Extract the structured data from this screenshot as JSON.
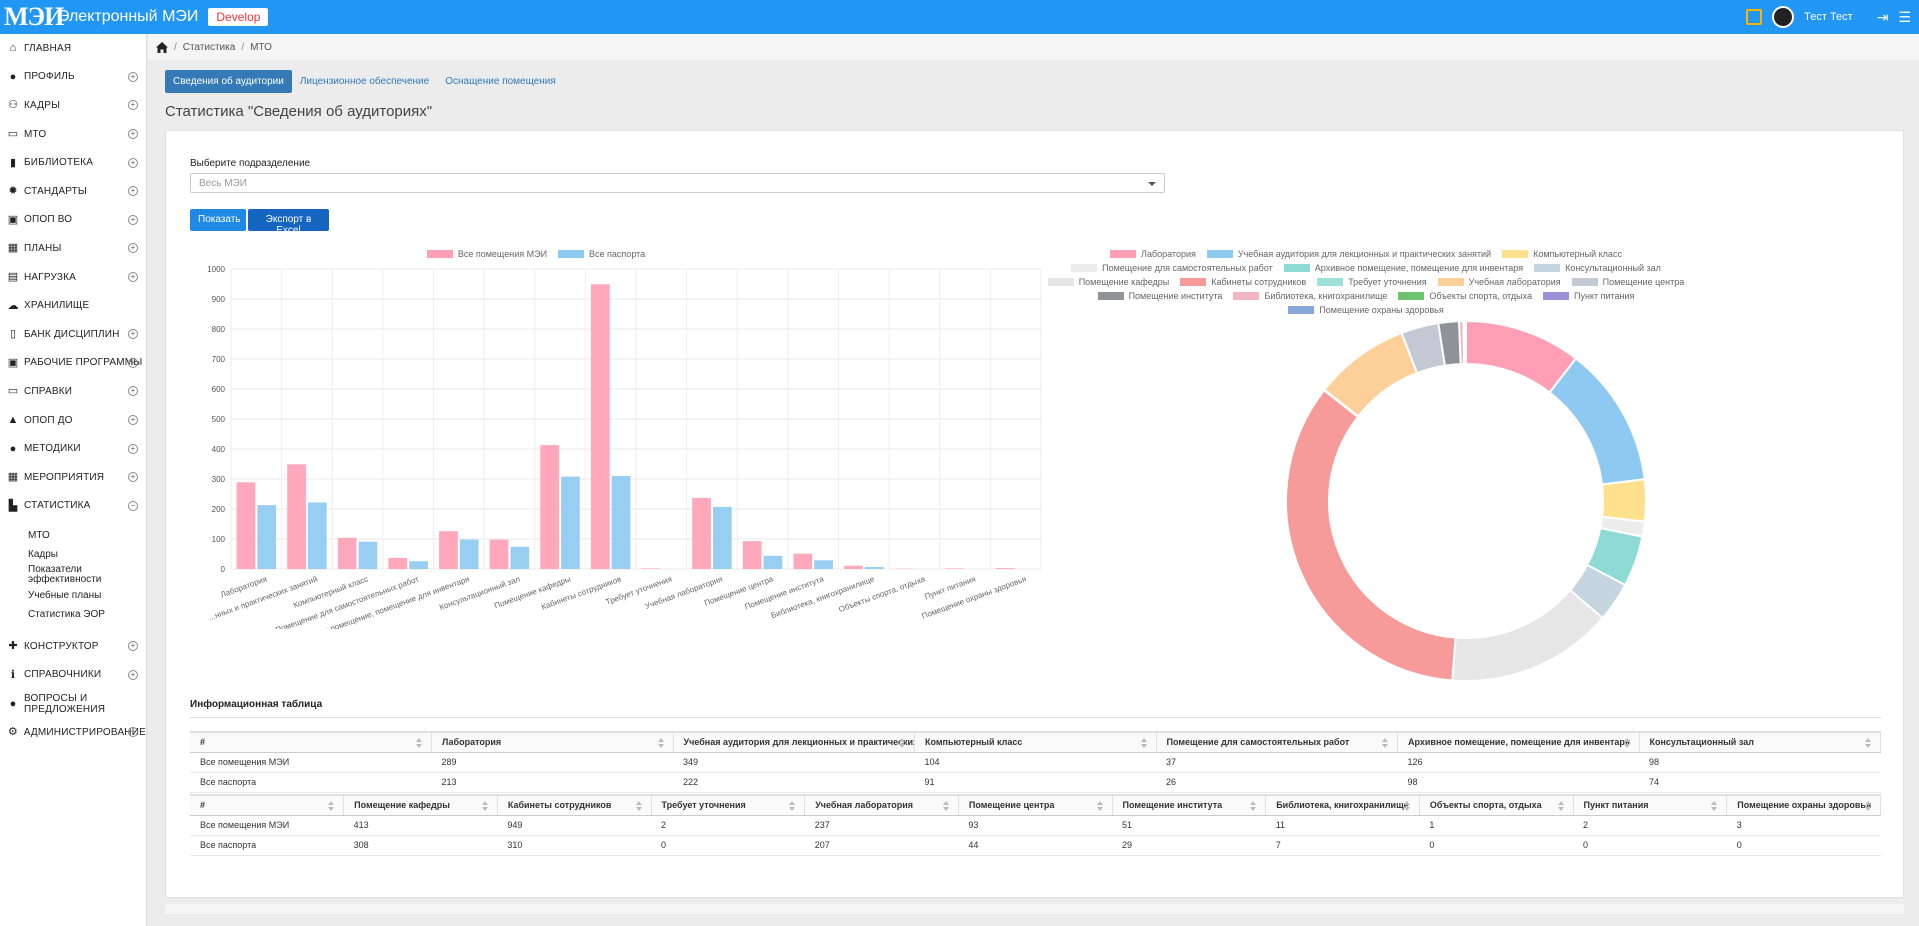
{
  "header": {
    "logo": "МЭИ",
    "app_name": "Электронный МЭИ",
    "env_badge": "Develop",
    "user_name": "Тест Тест"
  },
  "sidebar": {
    "items": [
      {
        "label": "Главная",
        "icon": "home-icon",
        "expandable": false
      },
      {
        "label": "Профиль",
        "icon": "user-icon",
        "expandable": true
      },
      {
        "label": "Кадры",
        "icon": "users-icon",
        "expandable": true
      },
      {
        "label": "МТО",
        "icon": "archive-icon",
        "expandable": true
      },
      {
        "label": "Библиотека",
        "icon": "book-icon",
        "expandable": true
      },
      {
        "label": "Стандарты",
        "icon": "certificate-icon",
        "expandable": true
      },
      {
        "label": "ОПОП ВО",
        "icon": "briefcase-icon",
        "expandable": true
      },
      {
        "label": "Планы",
        "icon": "calendar-icon",
        "expandable": true
      },
      {
        "label": "Нагрузка",
        "icon": "calculator-icon",
        "expandable": true
      },
      {
        "label": "Хранилище",
        "icon": "cloud-icon",
        "expandable": false
      },
      {
        "label": "Банк дисциплин",
        "icon": "file-icon",
        "expandable": true
      },
      {
        "label": "Рабочие программы",
        "icon": "briefcase-icon",
        "expandable": true
      },
      {
        "label": "Справки",
        "icon": "id-card-icon",
        "expandable": true
      },
      {
        "label": "ОПОП ДО",
        "icon": "graduation-cap-icon",
        "expandable": true
      },
      {
        "label": "Методики",
        "icon": "lightbulb-icon",
        "expandable": true
      },
      {
        "label": "Мероприятия",
        "icon": "calendar-check-icon",
        "expandable": true
      },
      {
        "label": "Статистика",
        "icon": "chart-icon",
        "expandable": true,
        "expanded": true
      }
    ],
    "subitems": [
      "МТО",
      "Кадры",
      "Показатели эффективности",
      "Учебные планы",
      "Статистика ЭОР"
    ],
    "items_after": [
      {
        "label": "Конструктор",
        "icon": "puzzle-icon",
        "expandable": true
      },
      {
        "label": "Справочники",
        "icon": "info-icon",
        "expandable": true
      },
      {
        "label": "Вопросы и предложения",
        "icon": "comments-icon",
        "expandable": false
      },
      {
        "label": "Администрирование",
        "icon": "cogs-icon",
        "expandable": true
      }
    ]
  },
  "breadcrumb": {
    "items": [
      "Статистика",
      "МТО"
    ]
  },
  "tabs": [
    "Сведения об аудитории",
    "Лицензионное обеспечение",
    "Оснащение помещения"
  ],
  "page_title": "Статистика \"Сведения об аудиториях\"",
  "filter": {
    "label": "Выберите подразделение",
    "selected": "Весь МЭИ"
  },
  "buttons": {
    "show": "Показать",
    "export": "Экспорт в Excel"
  },
  "colors": {
    "accent": "#2196f3",
    "series_all": "#ff9fb5",
    "series_passport": "#8ec9f2"
  },
  "chart_data": [
    {
      "type": "bar",
      "categories": [
        "Лаборатория",
        "Учебная аудитория для лекционных и практических занятий",
        "Компьютерный класс",
        "Помещение для самостоятельных работ",
        "Архивное помещение, помещение для инвентаря",
        "Консультационный зал",
        "Помещение кафедры",
        "Кабинеты сотрудников",
        "Требует уточнения",
        "Учебная лаборатория",
        "Помещение центра",
        "Помещение института",
        "Библиотека, книгохранилище",
        "Объекты спорта, отдыха",
        "Пункт питания",
        "Помещение охраны здоровья"
      ],
      "tick_labels": [
        "Лаборатория",
        "...нных и практических занятий",
        "Компьютерный класс",
        "Помещение для самостоятельных работ",
        "Архивное помещение, помещение для инвентаря",
        "Консультационный зал",
        "Помещение кафедры",
        "Кабинеты сотрудников",
        "Требует уточнения",
        "Учебная лаборатория",
        "Помещение центра",
        "Помещение института",
        "Библиотека, книгохранилище",
        "Объекты спорта, отдыха",
        "Пункт питания",
        "Помещение охраны здоровья"
      ],
      "series": [
        {
          "name": "Все помещения МЭИ",
          "color": "#ff9fb5",
          "values": [
            289,
            349,
            104,
            37,
            126,
            98,
            413,
            949,
            2,
            237,
            93,
            51,
            11,
            1,
            2,
            3
          ]
        },
        {
          "name": "Все паспорта",
          "color": "#8ec9f2",
          "values": [
            213,
            222,
            91,
            26,
            98,
            74,
            308,
            310,
            0,
            207,
            44,
            29,
            7,
            0,
            0,
            0
          ]
        }
      ],
      "ylim": [
        0,
        1000
      ],
      "yticks": [
        0,
        100,
        200,
        300,
        400,
        500,
        600,
        700,
        800,
        900,
        1000
      ],
      "grid": true,
      "legend": "top"
    },
    {
      "type": "pie",
      "variant": "doughnut",
      "labels": [
        "Лаборатория",
        "Учебная аудитория для лекционных и практических занятий",
        "Компьютерный класс",
        "Помещение для самостоятельных работ",
        "Архивное помещение, помещение для инвентаря",
        "Консультационный зал",
        "Помещение кафедры",
        "Кабинеты сотрудников",
        "Требует уточнения",
        "Учебная лаборатория",
        "Помещение центра",
        "Помещение института",
        "Библиотека, книгохранилище",
        "Объекты спорта, отдыха",
        "Пункт питания",
        "Помещение охраны здоровья"
      ],
      "values": [
        289,
        349,
        104,
        37,
        126,
        98,
        413,
        949,
        2,
        237,
        93,
        51,
        11,
        1,
        2,
        3
      ],
      "colors": [
        "#ff9fb5",
        "#8ec9f2",
        "#ffe08c",
        "#ececec",
        "#8edbd6",
        "#c5d6e0",
        "#e6e6e6",
        "#f79a9a",
        "#9ee0da",
        "#fdd09a",
        "#c2c8d4",
        "#8f9399",
        "#f2b6be",
        "#6cc46c",
        "#9b8fd9",
        "#86a8db"
      ],
      "legend": "top"
    }
  ],
  "info_table": {
    "title": "Информационная таблица",
    "table1": {
      "headers": [
        "#",
        "Лаборатория",
        "Учебная аудитория для лекционных и практических занятий",
        "Компьютерный класс",
        "Помещение для самостоятельных работ",
        "Архивное помещение, помещение для инвентаря",
        "Консультационный зал"
      ],
      "rows": [
        [
          "Все помещения МЭИ",
          "289",
          "349",
          "104",
          "37",
          "126",
          "98"
        ],
        [
          "Все паспорта",
          "213",
          "222",
          "91",
          "26",
          "98",
          "74"
        ]
      ]
    },
    "table2": {
      "headers": [
        "#",
        "Помещение кафедры",
        "Кабинеты сотрудников",
        "Требует уточнения",
        "Учебная лаборатория",
        "Помещение центра",
        "Помещение института",
        "Библиотека, книгохранилище",
        "Объекты спорта, отдыха",
        "Пункт питания",
        "Помещение охраны здоровья"
      ],
      "rows": [
        [
          "Все помещения МЭИ",
          "413",
          "949",
          "2",
          "237",
          "93",
          "51",
          "11",
          "1",
          "2",
          "3"
        ],
        [
          "Все паспорта",
          "308",
          "310",
          "0",
          "207",
          "44",
          "29",
          "7",
          "0",
          "0",
          "0"
        ]
      ]
    }
  }
}
